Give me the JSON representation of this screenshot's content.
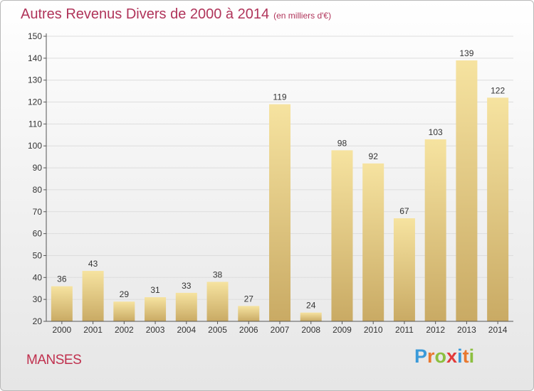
{
  "title": "Autres Revenus Divers de 2000 à 2014",
  "subtitle": "(en milliers d'€)",
  "place": "MANSES",
  "logo": {
    "letters": [
      "P",
      "r",
      "o",
      "x",
      "i",
      "t",
      "i"
    ],
    "colors": [
      "#3a9ad9",
      "#e9782f",
      "#8cbf3f",
      "#e23a3a",
      "#3a9ad9",
      "#e9782f",
      "#8cbf3f"
    ]
  },
  "chart_data": {
    "type": "bar",
    "title": "Autres Revenus Divers de 2000 à 2014",
    "subtitle": "(en milliers d'€)",
    "categories": [
      "2000",
      "2001",
      "2002",
      "2003",
      "2004",
      "2005",
      "2006",
      "2007",
      "2008",
      "2009",
      "2010",
      "2011",
      "2012",
      "2013",
      "2014"
    ],
    "values": [
      36,
      43,
      29,
      31,
      33,
      38,
      27,
      119,
      24,
      98,
      92,
      67,
      103,
      139,
      122
    ],
    "ylim": [
      20,
      150
    ],
    "yticks": [
      20,
      30,
      40,
      50,
      60,
      70,
      80,
      90,
      100,
      110,
      120,
      130,
      140,
      150
    ],
    "grid": true,
    "colors": {
      "bar_light": "#f6e3a0",
      "bar_dark": "#c9aa64",
      "grid": "#dddddd",
      "axis": "#555555",
      "text": "#333333"
    }
  }
}
